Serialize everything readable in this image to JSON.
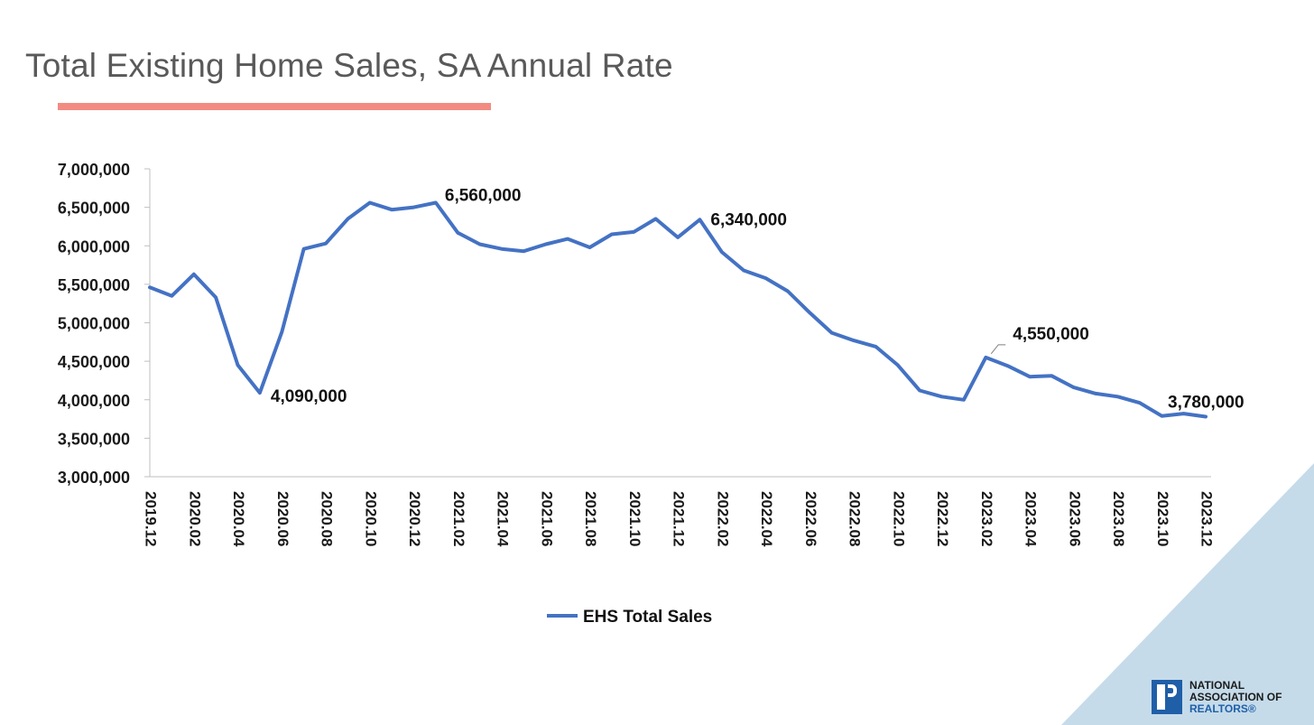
{
  "slide": {
    "title": "Total Existing Home Sales, SA Annual Rate",
    "accent_color": "#f28b82"
  },
  "logo": {
    "line1": "NATIONAL",
    "line2": "ASSOCIATION OF",
    "line3": "REALTORS®",
    "brand_color": "#1f5fa8"
  },
  "chart_data": {
    "type": "line",
    "title": "Total Existing Home Sales, SA Annual Rate",
    "xlabel": "",
    "ylabel": "",
    "ylim": [
      3000000,
      7000000
    ],
    "ytick_step": 500000,
    "grid": false,
    "legend_position": "bottom-center",
    "x": [
      "2019.12",
      "2020.01",
      "2020.02",
      "2020.03",
      "2020.04",
      "2020.05",
      "2020.06",
      "2020.07",
      "2020.08",
      "2020.09",
      "2020.10",
      "2020.11",
      "2020.12",
      "2021.01",
      "2021.02",
      "2021.03",
      "2021.04",
      "2021.05",
      "2021.06",
      "2021.07",
      "2021.08",
      "2021.09",
      "2021.10",
      "2021.11",
      "2021.12",
      "2022.01",
      "2022.02",
      "2022.03",
      "2022.04",
      "2022.05",
      "2022.06",
      "2022.07",
      "2022.08",
      "2022.09",
      "2022.10",
      "2022.11",
      "2022.12",
      "2023.01",
      "2023.02",
      "2023.03",
      "2023.04",
      "2023.05",
      "2023.06",
      "2023.07",
      "2023.08",
      "2023.09",
      "2023.10",
      "2023.11",
      "2023.12"
    ],
    "xtick_labels": [
      "2019.12",
      "2020.02",
      "2020.04",
      "2020.06",
      "2020.08",
      "2020.10",
      "2020.12",
      "2021.02",
      "2021.04",
      "2021.06",
      "2021.08",
      "2021.10",
      "2021.12",
      "2022.02",
      "2022.04",
      "2022.06",
      "2022.08",
      "2022.10",
      "2022.12",
      "2023.02",
      "2023.04",
      "2023.06",
      "2023.08",
      "2023.10",
      "2023.12"
    ],
    "series": [
      {
        "name": "EHS Total Sales",
        "color": "#4472c4",
        "values": [
          5460000,
          5350000,
          5630000,
          5330000,
          4450000,
          4090000,
          4880000,
          5960000,
          6030000,
          6350000,
          6560000,
          6470000,
          6500000,
          6560000,
          6170000,
          6020000,
          5960000,
          5930000,
          6020000,
          6090000,
          5980000,
          6150000,
          6180000,
          6350000,
          6110000,
          6340000,
          5920000,
          5680000,
          5580000,
          5410000,
          5130000,
          4870000,
          4770000,
          4690000,
          4450000,
          4120000,
          4040000,
          4000000,
          4550000,
          4440000,
          4300000,
          4310000,
          4160000,
          4080000,
          4040000,
          3960000,
          3790000,
          3820000,
          3780000
        ]
      }
    ],
    "annotations": [
      {
        "index": 5,
        "text": "4,090,000"
      },
      {
        "index": 13,
        "text": "6,560,000"
      },
      {
        "index": 25,
        "text": "6,340,000"
      },
      {
        "index": 38,
        "text": "4,550,000"
      },
      {
        "index": 48,
        "text": "3,780,000"
      }
    ]
  }
}
